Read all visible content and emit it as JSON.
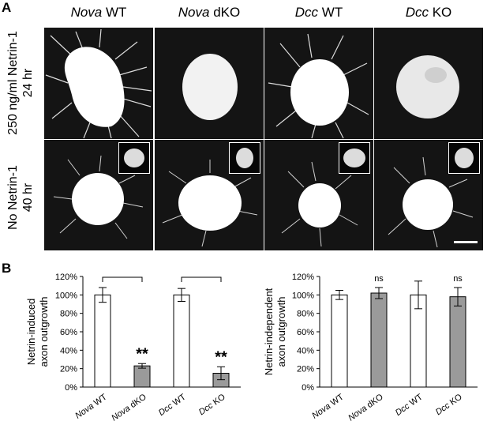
{
  "panels": {
    "a": "A",
    "b": "B"
  },
  "columns": [
    {
      "gene": "Nova",
      "genotype": "WT"
    },
    {
      "gene": "Nova",
      "genotype": "dKO"
    },
    {
      "gene": "Dcc",
      "genotype": "WT"
    },
    {
      "gene": "Dcc",
      "genotype": "KO"
    }
  ],
  "rows": [
    {
      "line1": "250 ng/ml Netrin-1",
      "line2": "24 hr"
    },
    {
      "line1": "No Netrin-1",
      "line2": "40 hr"
    }
  ],
  "chart_data": [
    {
      "type": "bar",
      "ylabel_line1": "Netrin-induced",
      "ylabel_line2": "axon outgrowth",
      "categories": [
        {
          "gene": "Nova",
          "genotype": "WT"
        },
        {
          "gene": "Nova",
          "genotype": "dKO"
        },
        {
          "gene": "Dcc",
          "genotype": "WT"
        },
        {
          "gene": "Dcc",
          "genotype": "KO"
        }
      ],
      "values": [
        100,
        23,
        100,
        15
      ],
      "errors": [
        8,
        2.5,
        7,
        7
      ],
      "fills": [
        "#ffffff",
        "#9a9a9a",
        "#ffffff",
        "#9a9a9a"
      ],
      "annotations": [
        "",
        "**",
        "",
        "**"
      ],
      "brackets": [
        [
          0,
          1
        ],
        [
          2,
          3
        ]
      ],
      "ylim": [
        0,
        120
      ],
      "yticks": [
        "0%",
        "20%",
        "40%",
        "60%",
        "80%",
        "100%",
        "120%"
      ]
    },
    {
      "type": "bar",
      "ylabel_line1": "Netrin-independent",
      "ylabel_line2": "axon outgrowth",
      "categories": [
        {
          "gene": "Nova",
          "genotype": "WT"
        },
        {
          "gene": "Nova",
          "genotype": "dKO"
        },
        {
          "gene": "Dcc",
          "genotype": "WT"
        },
        {
          "gene": "Dcc",
          "genotype": "KO"
        }
      ],
      "values": [
        100,
        102,
        100,
        98
      ],
      "errors": [
        5,
        6,
        15,
        10
      ],
      "fills": [
        "#ffffff",
        "#9a9a9a",
        "#ffffff",
        "#9a9a9a"
      ],
      "annotations": [
        "",
        "ns",
        "",
        "ns"
      ],
      "brackets": [],
      "ylim": [
        0,
        120
      ],
      "yticks": [
        "0%",
        "20%",
        "40%",
        "60%",
        "80%",
        "100%",
        "120%"
      ]
    }
  ]
}
